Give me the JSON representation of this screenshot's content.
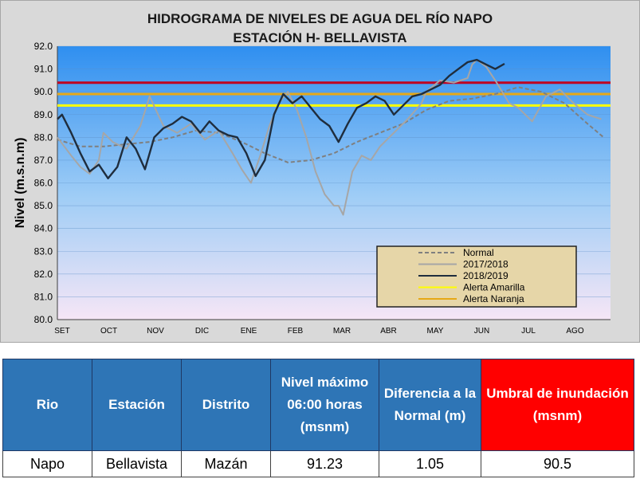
{
  "chart_data": {
    "type": "line",
    "title": "HIDROGRAMA DE NIVELES DE AGUA DEL RÍO NAPO",
    "subtitle": "ESTACIÓN H- BELLAVISTA",
    "xlabel": "",
    "ylabel": "Nivel (m.s.n.m)",
    "ylim": [
      80.0,
      92.0
    ],
    "yticks": [
      "80.0",
      "81.0",
      "82.0",
      "83.0",
      "84.0",
      "85.0",
      "86.0",
      "87.0",
      "88.0",
      "89.0",
      "90.0",
      "91.0",
      "92.0"
    ],
    "categories": [
      "SET",
      "OCT",
      "NOV",
      "DIC",
      "ENE",
      "FEB",
      "MAR",
      "ABR",
      "MAY",
      "JUN",
      "JUL",
      "AGO"
    ],
    "x_domain": [
      0,
      12
    ],
    "grid": true,
    "legend_position": "bottom-right",
    "series": [
      {
        "name": "Normal",
        "color": "#7f7f7f",
        "dash": "5,3",
        "x": [
          0,
          0.5,
          1,
          1.5,
          2,
          2.5,
          3,
          3.5,
          4,
          4.5,
          5,
          5.5,
          6,
          6.5,
          7,
          7.5,
          8,
          8.5,
          9,
          9.5,
          10,
          10.5,
          11,
          11.5,
          11.85
        ],
        "y": [
          87.9,
          87.6,
          87.6,
          87.7,
          87.8,
          88.0,
          88.3,
          88.2,
          87.8,
          87.3,
          86.9,
          87.0,
          87.3,
          87.8,
          88.2,
          88.6,
          89.2,
          89.6,
          89.7,
          89.9,
          90.2,
          90.0,
          89.5,
          88.6,
          88.0
        ]
      },
      {
        "name": "2017/2018",
        "color": "#a6a6a6",
        "dash": "",
        "x": [
          0,
          0.3,
          0.5,
          0.7,
          0.9,
          1.0,
          1.2,
          1.5,
          1.8,
          2.0,
          2.3,
          2.6,
          2.9,
          3.2,
          3.5,
          3.8,
          4.0,
          4.2,
          4.4,
          4.6,
          4.8,
          5.0,
          5.2,
          5.4,
          5.6,
          5.8,
          6.0,
          6.1,
          6.2,
          6.4,
          6.6,
          6.8,
          7.0,
          7.3,
          7.6,
          7.9,
          8.0,
          8.3,
          8.6,
          8.9,
          9.0,
          9.1,
          9.3,
          9.5,
          9.8,
          10.0,
          10.3,
          10.6,
          10.9,
          11.2,
          11.5,
          11.8
        ],
        "y": [
          88.0,
          87.2,
          86.7,
          86.4,
          87.0,
          88.2,
          87.8,
          87.5,
          88.5,
          89.8,
          88.5,
          88.2,
          88.6,
          87.9,
          88.3,
          87.3,
          86.6,
          86.0,
          87.2,
          88.5,
          89.5,
          90.0,
          89.2,
          88.0,
          86.5,
          85.5,
          85.0,
          85.0,
          84.6,
          86.5,
          87.2,
          87.0,
          87.6,
          88.2,
          88.8,
          89.5,
          90.0,
          90.5,
          90.4,
          90.6,
          91.2,
          91.4,
          91.1,
          90.5,
          89.5,
          89.3,
          88.7,
          89.8,
          90.1,
          89.5,
          89.0,
          88.8
        ]
      },
      {
        "name": "2018/2019",
        "color": "#1f2d3d",
        "dash": "",
        "x": [
          0,
          0.1,
          0.3,
          0.5,
          0.7,
          0.9,
          1.1,
          1.3,
          1.5,
          1.7,
          1.9,
          2.1,
          2.3,
          2.5,
          2.7,
          2.9,
          3.1,
          3.3,
          3.5,
          3.7,
          3.9,
          4.1,
          4.3,
          4.5,
          4.7,
          4.9,
          5.1,
          5.3,
          5.5,
          5.7,
          5.9,
          6.1,
          6.3,
          6.5,
          6.7,
          6.9,
          7.1,
          7.3,
          7.5,
          7.7,
          7.9,
          8.1,
          8.3,
          8.5,
          8.7,
          8.9,
          9.1,
          9.3,
          9.5,
          9.7
        ],
        "y": [
          88.8,
          89.0,
          88.2,
          87.3,
          86.5,
          86.8,
          86.2,
          86.7,
          88.0,
          87.5,
          86.6,
          88.0,
          88.4,
          88.6,
          88.9,
          88.7,
          88.2,
          88.7,
          88.3,
          88.1,
          88.0,
          87.3,
          86.3,
          87.0,
          89.0,
          89.9,
          89.5,
          89.8,
          89.3,
          88.8,
          88.5,
          87.8,
          88.6,
          89.3,
          89.5,
          89.8,
          89.6,
          89.0,
          89.4,
          89.8,
          89.9,
          90.1,
          90.3,
          90.7,
          91.0,
          91.3,
          91.4,
          91.2,
          91.0,
          91.23
        ]
      }
    ],
    "reference_lines": [
      {
        "name": "Alerta Amarilla",
        "y": 89.4,
        "color": "#ffff00"
      },
      {
        "name": "Alerta Naranja",
        "y": 89.9,
        "color": "#e6a817"
      },
      {
        "name": "",
        "y": 90.4,
        "color": "#c00020"
      }
    ]
  },
  "table": {
    "headers": [
      "Rio",
      "Estación",
      "Distrito",
      "Nivel máximo 06:00 horas (msnm)",
      "Diferencia a la Normal (m)",
      "Umbral de inundación (msnm)"
    ],
    "header_colors": [
      "#2e75b6",
      "#2e75b6",
      "#2e75b6",
      "#2e75b6",
      "#2e75b6",
      "#ff0000"
    ],
    "rows": [
      [
        "Napo",
        "Bellavista",
        "Mazán",
        "91.23",
        "1.05",
        "90.5"
      ]
    ]
  }
}
